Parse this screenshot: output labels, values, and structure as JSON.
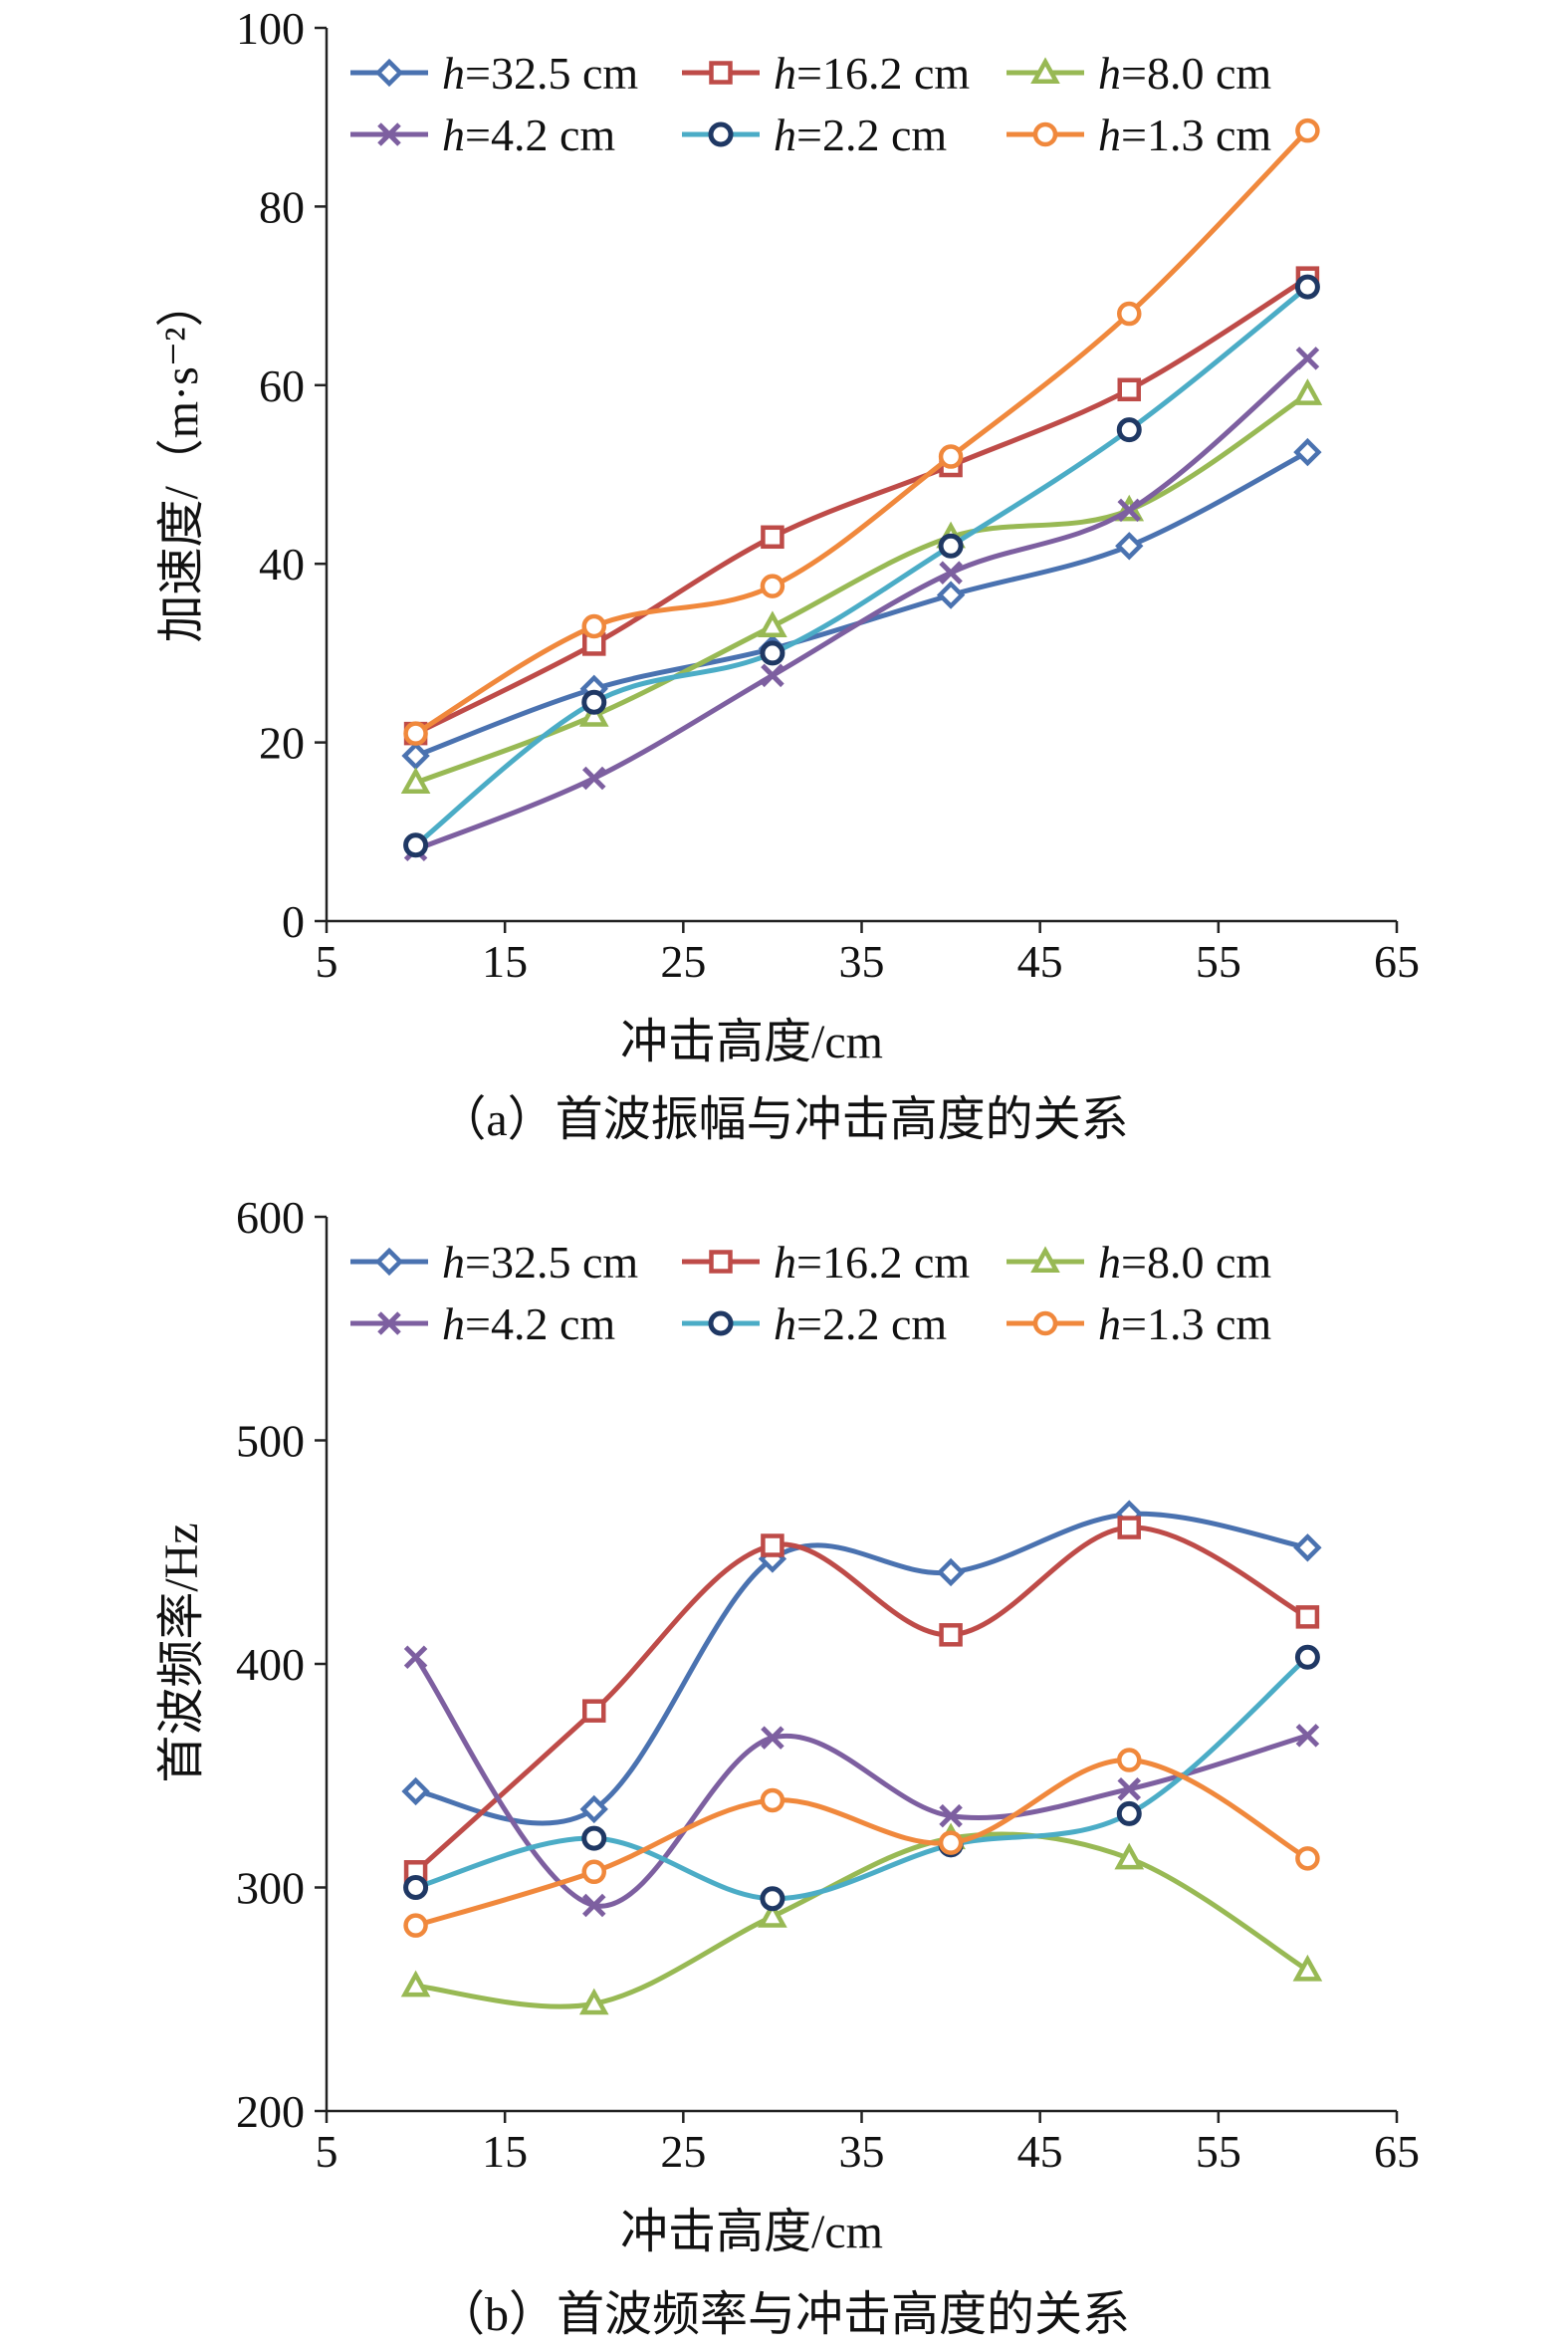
{
  "charts": [
    {
      "ylabel": "加速度/（m·s⁻²）",
      "xlabel": "冲击高度/cm",
      "caption": "（a）首波振幅与冲击高度的关系"
    },
    {
      "ylabel": "首波频率/Hz",
      "xlabel": "冲击高度/cm",
      "caption": "（b）首波频率与冲击高度的关系"
    }
  ],
  "legend": [
    {
      "prefix": "h",
      "suffix": "=32.5 cm"
    },
    {
      "prefix": "h",
      "suffix": "=16.2 cm"
    },
    {
      "prefix": "h",
      "suffix": "=8.0 cm"
    },
    {
      "prefix": "h",
      "suffix": "=4.2 cm"
    },
    {
      "prefix": "h",
      "suffix": "=2.2 cm"
    },
    {
      "prefix": "h",
      "suffix": "=1.3 cm"
    }
  ],
  "chart_data": [
    {
      "type": "line",
      "smooth": true,
      "title": "",
      "xlabel": "冲击高度/cm",
      "ylabel": "加速度/（m·s⁻²）",
      "xlim": [
        5,
        65
      ],
      "ylim": [
        0,
        100
      ],
      "xticks": [
        5,
        15,
        25,
        35,
        45,
        55,
        65
      ],
      "yticks": [
        0,
        20,
        40,
        60,
        80,
        100
      ],
      "grid": false,
      "legend_position": "top-left",
      "x": [
        10,
        20,
        30,
        40,
        50,
        60
      ],
      "series": [
        {
          "name": "h=32.5 cm",
          "color": "#4a72b0",
          "marker": "diamond",
          "values": [
            18.5,
            26,
            30.5,
            36.5,
            42,
            52.5
          ]
        },
        {
          "name": "h=16.2 cm",
          "color": "#be4b48",
          "marker": "square",
          "values": [
            21,
            31,
            43,
            51,
            59.5,
            72
          ]
        },
        {
          "name": "h=8.0 cm",
          "color": "#98b954",
          "marker": "triangle",
          "values": [
            15.5,
            23,
            33,
            43,
            46,
            59
          ]
        },
        {
          "name": "h=4.2 cm",
          "color": "#7d5fa0",
          "marker": "x",
          "values": [
            8,
            16,
            27.5,
            39,
            46,
            63
          ]
        },
        {
          "name": "h=2.2 cm",
          "color": "#4bacc6",
          "marker": "circle-dark",
          "markerColor": "#1f3864",
          "values": [
            8.5,
            24.5,
            30,
            42,
            55,
            71
          ]
        },
        {
          "name": "h=1.3 cm",
          "color": "#f0883c",
          "marker": "circle",
          "values": [
            21,
            33,
            37.5,
            52,
            68,
            88.5
          ]
        }
      ]
    },
    {
      "type": "line",
      "smooth": true,
      "title": "",
      "xlabel": "冲击高度/cm",
      "ylabel": "首波频率/Hz",
      "xlim": [
        5,
        65
      ],
      "ylim": [
        200,
        600
      ],
      "xticks": [
        5,
        15,
        25,
        35,
        45,
        55,
        65
      ],
      "yticks": [
        200,
        300,
        400,
        500,
        600
      ],
      "grid": false,
      "legend_position": "top-left",
      "x": [
        10,
        20,
        30,
        40,
        50,
        60
      ],
      "series": [
        {
          "name": "h=32.5 cm",
          "color": "#4a72b0",
          "marker": "diamond",
          "values": [
            343,
            335,
            447,
            441,
            467,
            452
          ]
        },
        {
          "name": "h=16.2 cm",
          "color": "#be4b48",
          "marker": "square",
          "values": [
            307,
            379,
            453,
            413,
            461,
            421
          ]
        },
        {
          "name": "h=8.0 cm",
          "color": "#98b954",
          "marker": "triangle",
          "values": [
            256,
            248,
            287,
            322,
            313,
            263
          ]
        },
        {
          "name": "h=4.2 cm",
          "color": "#7d5fa0",
          "marker": "x",
          "values": [
            403,
            292,
            367,
            332,
            344,
            368
          ]
        },
        {
          "name": "h=2.2 cm",
          "color": "#4bacc6",
          "marker": "circle-dark",
          "markerColor": "#1f3864",
          "values": [
            300,
            322,
            295,
            319,
            333,
            403
          ]
        },
        {
          "name": "h=1.3 cm",
          "color": "#f0883c",
          "marker": "circle",
          "values": [
            283,
            307,
            339,
            320,
            357,
            313
          ]
        }
      ]
    }
  ]
}
